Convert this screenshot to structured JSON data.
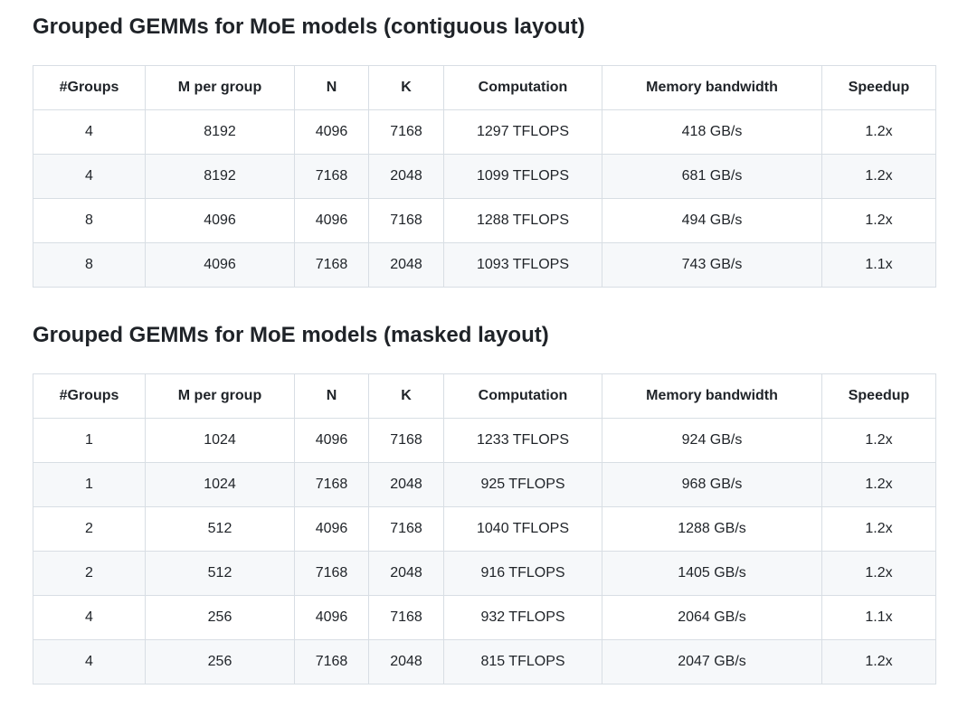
{
  "page": {
    "background_color": "#ffffff",
    "text_color": "#1f2328",
    "border_color": "#d8dee4",
    "stripe_color": "#f6f8fa"
  },
  "columns": [
    "#Groups",
    "M per group",
    "N",
    "K",
    "Computation",
    "Memory bandwidth",
    "Speedup"
  ],
  "sections": [
    {
      "title": "Grouped GEMMs for MoE models (contiguous layout)",
      "rows": [
        [
          "4",
          "8192",
          "4096",
          "7168",
          "1297 TFLOPS",
          "418 GB/s",
          "1.2x"
        ],
        [
          "4",
          "8192",
          "7168",
          "2048",
          "1099 TFLOPS",
          "681 GB/s",
          "1.2x"
        ],
        [
          "8",
          "4096",
          "4096",
          "7168",
          "1288 TFLOPS",
          "494 GB/s",
          "1.2x"
        ],
        [
          "8",
          "4096",
          "7168",
          "2048",
          "1093 TFLOPS",
          "743 GB/s",
          "1.1x"
        ]
      ]
    },
    {
      "title": "Grouped GEMMs for MoE models (masked layout)",
      "rows": [
        [
          "1",
          "1024",
          "4096",
          "7168",
          "1233 TFLOPS",
          "924 GB/s",
          "1.2x"
        ],
        [
          "1",
          "1024",
          "7168",
          "2048",
          "925 TFLOPS",
          "968 GB/s",
          "1.2x"
        ],
        [
          "2",
          "512",
          "4096",
          "7168",
          "1040 TFLOPS",
          "1288 GB/s",
          "1.2x"
        ],
        [
          "2",
          "512",
          "7168",
          "2048",
          "916 TFLOPS",
          "1405 GB/s",
          "1.2x"
        ],
        [
          "4",
          "256",
          "4096",
          "7168",
          "932 TFLOPS",
          "2064 GB/s",
          "1.1x"
        ],
        [
          "4",
          "256",
          "7168",
          "2048",
          "815 TFLOPS",
          "2047 GB/s",
          "1.2x"
        ]
      ]
    }
  ]
}
